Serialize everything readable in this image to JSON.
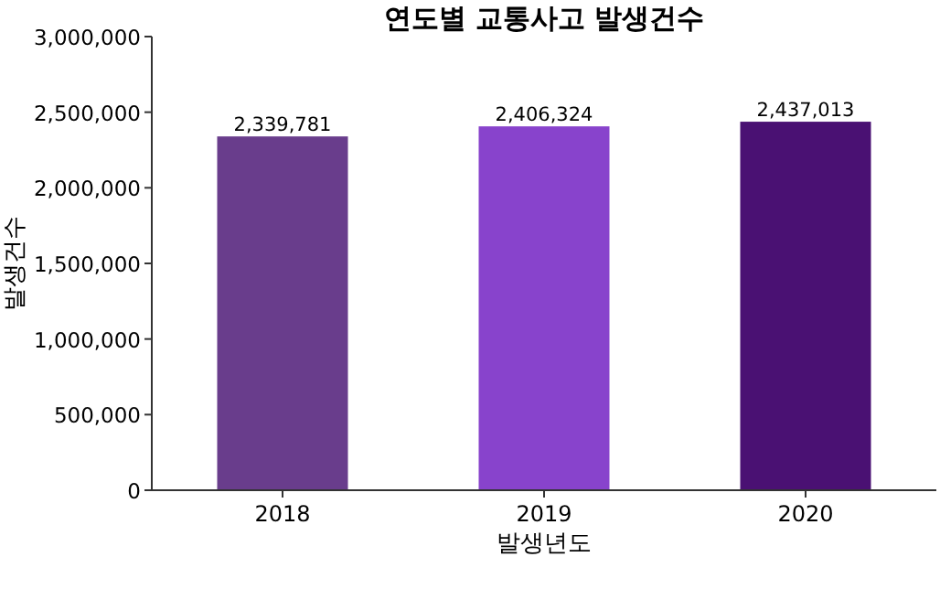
{
  "chart_data": {
    "type": "bar",
    "title": "연도별 교통사고 발생건수",
    "xlabel": "발생년도",
    "ylabel": "발생건수",
    "categories": [
      "2018",
      "2019",
      "2020"
    ],
    "values": [
      2339781,
      2406324,
      2437013
    ],
    "colors": [
      "#693d8c",
      "#8843cc",
      "#4a1173"
    ],
    "ylim": [
      0,
      3000000
    ],
    "yticks": [
      {
        "value": 0,
        "label": "0"
      },
      {
        "value": 500000,
        "label": "500,000"
      },
      {
        "value": 1000000,
        "label": "1,000,000"
      },
      {
        "value": 1500000,
        "label": "1,500,000"
      },
      {
        "value": 2000000,
        "label": "2,000,000"
      },
      {
        "value": 2500000,
        "label": "2,500,000"
      },
      {
        "value": 3000000,
        "label": "3,000,000"
      }
    ],
    "value_labels": [
      "2,339,781",
      "2,406,324",
      "2,437,013"
    ]
  }
}
